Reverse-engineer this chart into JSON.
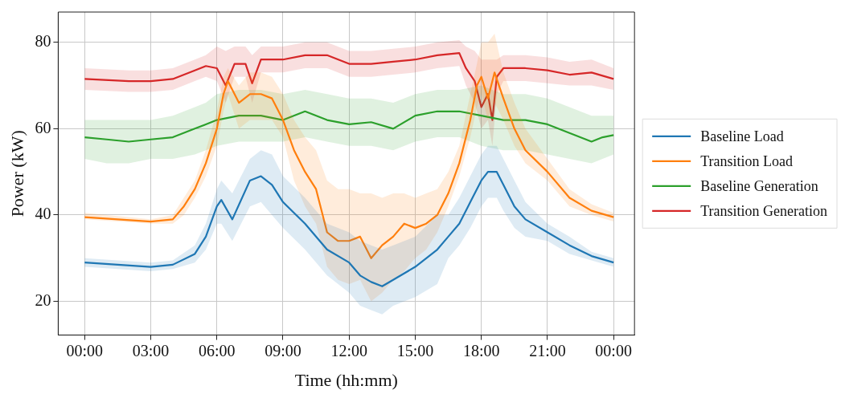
{
  "chart_data": {
    "type": "line",
    "xlabel": "Time (hh:mm)",
    "ylabel": "Power (kW)",
    "xlim": [
      -1.2,
      24.95
    ],
    "ylim": [
      12.2,
      87
    ],
    "xticks": [
      {
        "value": 0,
        "label": "00:00"
      },
      {
        "value": 3,
        "label": "03:00"
      },
      {
        "value": 6,
        "label": "06:00"
      },
      {
        "value": 9,
        "label": "09:00"
      },
      {
        "value": 12,
        "label": "12:00"
      },
      {
        "value": 15,
        "label": "15:00"
      },
      {
        "value": 18,
        "label": "18:00"
      },
      {
        "value": 21,
        "label": "21:00"
      },
      {
        "value": 24,
        "label": "00:00"
      }
    ],
    "yticks": [
      20,
      40,
      60,
      80
    ],
    "grid": true,
    "legend": "right",
    "marker": "none",
    "line_style": "solid",
    "series": [
      {
        "name": "Baseline Load",
        "color": "#1f77b4",
        "x": [
          0,
          3,
          4,
          5,
          5.5,
          6,
          6.2,
          6.7,
          7.5,
          8,
          8.5,
          9,
          10,
          11,
          12,
          12.5,
          13,
          13.5,
          14,
          15,
          16,
          16.5,
          17,
          17.5,
          18,
          18.3,
          18.7,
          19,
          19.5,
          20,
          21,
          22,
          23,
          24
        ],
        "values": [
          29,
          28,
          28.5,
          31,
          35,
          42,
          43.5,
          39,
          48,
          49,
          47,
          43,
          38,
          32,
          29,
          26,
          24.5,
          23.5,
          25,
          28,
          32,
          35,
          38,
          43,
          48,
          50,
          50,
          47,
          42,
          39,
          36,
          33,
          30.5,
          29
        ],
        "lower": [
          28,
          27,
          27.5,
          29,
          32,
          38,
          38,
          34,
          42,
          43,
          40,
          37,
          32,
          26,
          22,
          19,
          18,
          17,
          19,
          21,
          24,
          30,
          33,
          37,
          42,
          44,
          44,
          41,
          37,
          35,
          34,
          31,
          29.5,
          28
        ],
        "upper": [
          30,
          29,
          29.5,
          33,
          38,
          46,
          48,
          45,
          53,
          55,
          54,
          49,
          44,
          38,
          36,
          34,
          33,
          32,
          33,
          35,
          40,
          40,
          44,
          49,
          54,
          56,
          56,
          53,
          48,
          43,
          38,
          35,
          31.5,
          30
        ]
      },
      {
        "name": "Transition Load",
        "color": "#ff7f0e",
        "x": [
          0,
          3,
          4,
          4.5,
          5,
          5.5,
          6,
          6.3,
          6.5,
          7,
          7.5,
          8,
          8.5,
          9,
          9.5,
          10,
          10.5,
          11,
          11.5,
          12,
          12.5,
          13,
          13.5,
          14,
          14.5,
          15,
          15.5,
          16,
          16.5,
          17,
          17.5,
          17.8,
          18,
          18.3,
          18.6,
          19,
          19.5,
          20,
          21,
          22,
          23,
          24
        ],
        "values": [
          39.5,
          38.5,
          39,
          42,
          46,
          52,
          60,
          68,
          71,
          66,
          68,
          68,
          67,
          62,
          55,
          50,
          46,
          36,
          34,
          34,
          35,
          30,
          33,
          35,
          38,
          37,
          38,
          40,
          45,
          52,
          62,
          70,
          72,
          67,
          73,
          67,
          60,
          55,
          50,
          44,
          41,
          39.5
        ],
        "lower": [
          39,
          38,
          38,
          40,
          44,
          49,
          56,
          64,
          68,
          60,
          62,
          62,
          62,
          58,
          48,
          42,
          38,
          28,
          25,
          24,
          25,
          20,
          22,
          25,
          27,
          30,
          32,
          36,
          42,
          49,
          58,
          65,
          68,
          62,
          66,
          62,
          56,
          52,
          48,
          42,
          40,
          38.5
        ],
        "upper": [
          40.5,
          39,
          40,
          44,
          48,
          55,
          64,
          72,
          74,
          70,
          73,
          73,
          72,
          68,
          62,
          58,
          55,
          48,
          46,
          46,
          45,
          45,
          44,
          45,
          45,
          44,
          45,
          46,
          50,
          56,
          68,
          75,
          80,
          80,
          82,
          73,
          66,
          60,
          53,
          46,
          42.5,
          40.5
        ]
      },
      {
        "name": "Baseline Generation",
        "color": "#2ca02c",
        "x": [
          0,
          1,
          2,
          3,
          4,
          5,
          5.5,
          6,
          7,
          8,
          9,
          10,
          11,
          12,
          13,
          14,
          15,
          16,
          17,
          18,
          19,
          20,
          21,
          22,
          23,
          23.5,
          24
        ],
        "values": [
          58,
          57.5,
          57,
          57.5,
          58,
          60,
          61,
          62,
          63,
          63,
          62,
          64,
          62,
          61,
          61.5,
          60,
          63,
          64,
          64,
          63,
          62,
          62,
          61,
          59,
          57,
          58,
          58.5
        ],
        "lower": [
          53,
          52,
          52,
          53,
          53,
          54,
          55,
          56,
          57,
          57,
          57,
          58,
          57,
          56,
          56,
          55,
          57,
          58,
          58,
          56,
          55,
          55,
          54,
          53,
          52,
          53,
          54
        ],
        "upper": [
          62,
          62,
          62,
          62,
          63,
          65,
          66,
          68,
          69,
          69,
          68,
          69,
          68,
          67,
          67,
          66,
          68,
          69,
          69,
          70,
          68,
          68,
          67,
          65,
          63,
          63,
          63
        ]
      },
      {
        "name": "Transition Generation",
        "color": "#d62728",
        "x": [
          0,
          2,
          3,
          4,
          5,
          5.5,
          6,
          6.4,
          6.8,
          7.3,
          7.6,
          8,
          9,
          10,
          11,
          12,
          13,
          14,
          15,
          16,
          17,
          17.3,
          17.7,
          18,
          18.3,
          18.5,
          18.7,
          19,
          20,
          21,
          22,
          23,
          24
        ],
        "values": [
          71.5,
          71,
          71,
          71.5,
          73.5,
          74.5,
          74,
          70,
          75,
          75,
          70.5,
          76,
          76,
          77,
          77,
          75,
          75,
          75.5,
          76,
          77,
          77.5,
          74,
          71,
          65,
          68,
          62,
          72,
          74,
          74,
          73.5,
          72.5,
          73,
          71.5
        ],
        "lower": [
          69,
          68.5,
          68.5,
          69,
          71,
          72,
          71,
          66,
          72,
          72,
          66,
          73,
          73,
          74,
          74,
          72,
          72,
          72.5,
          73,
          74,
          74.5,
          70,
          66,
          60,
          62,
          56,
          68,
          71,
          71,
          70.5,
          70,
          70,
          69
        ],
        "upper": [
          74,
          73.5,
          73.5,
          74,
          76,
          77,
          79,
          78,
          79,
          79,
          77,
          79,
          79,
          80,
          80,
          78,
          78,
          78.5,
          79,
          80,
          80.5,
          79,
          78,
          76,
          76,
          76,
          76,
          77,
          77,
          76.5,
          75.5,
          76,
          74
        ]
      }
    ]
  }
}
